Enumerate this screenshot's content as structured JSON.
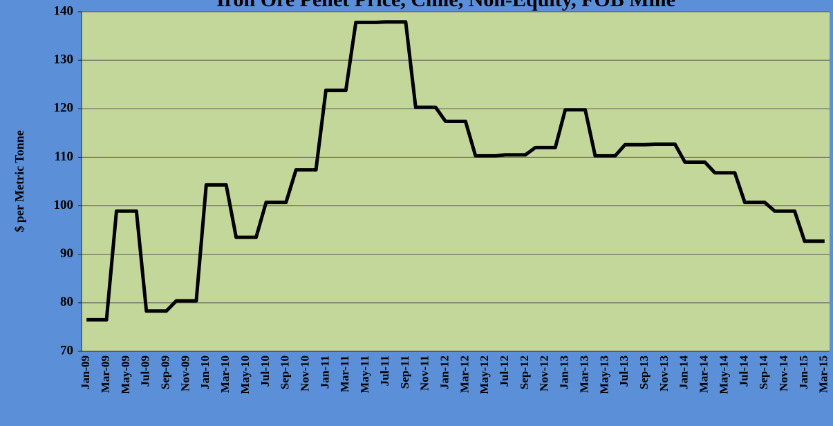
{
  "chart_data": {
    "type": "line",
    "title": "Iron Ore Pellet Price, Chile, Non-Equity, FOB Mine",
    "y_label": "$ per Metric Tonne",
    "categories": [
      "Jan-09",
      null,
      "Mar-09",
      null,
      "May-09",
      null,
      "Jul-09",
      null,
      "Sep-09",
      null,
      "Nov-09",
      null,
      "Jan-10",
      null,
      "Mar-10",
      null,
      "May-10",
      null,
      "Jul-10",
      null,
      "Sep-10",
      null,
      "Nov-10",
      null,
      "Jan-11",
      null,
      "Mar-11",
      null,
      "May-11",
      null,
      "Jul-11",
      null,
      "Sep-11",
      null,
      "Nov-11",
      null,
      "Jan-12",
      null,
      "Mar-12",
      null,
      "May-12",
      null,
      "Jul-12",
      null,
      "Sep-12",
      null,
      "Nov-12",
      null,
      "Jan-13",
      null,
      "Mar-13",
      null,
      "May-13",
      null,
      "Jul-13",
      null,
      "Sep-13",
      null,
      "Nov-13",
      null,
      "Jan-14",
      null,
      "Mar-14",
      null,
      "May-14",
      null,
      "Jul-14",
      null,
      "Sep-14",
      null,
      "Nov-14",
      null,
      "Jan-15",
      null,
      "Mar-15"
    ],
    "values": [
      76.5,
      76.5,
      76.5,
      98.9,
      98.9,
      98.9,
      78.3,
      78.3,
      78.3,
      80.4,
      80.4,
      80.4,
      104.3,
      104.3,
      104.3,
      93.5,
      93.5,
      93.5,
      100.7,
      100.7,
      100.7,
      107.4,
      107.4,
      107.4,
      123.8,
      123.8,
      123.8,
      137.8,
      137.8,
      137.8,
      137.9,
      137.9,
      137.9,
      120.3,
      120.3,
      120.3,
      117.4,
      117.4,
      117.4,
      110.3,
      110.3,
      110.3,
      110.5,
      110.5,
      110.5,
      112.0,
      112.0,
      112.0,
      119.8,
      119.8,
      119.8,
      110.3,
      110.3,
      110.3,
      112.6,
      112.6,
      112.6,
      112.7,
      112.7,
      112.7,
      109.0,
      109.0,
      109.0,
      106.8,
      106.8,
      106.8,
      100.7,
      100.7,
      100.7,
      98.9,
      98.9,
      98.9,
      92.7,
      92.7,
      92.7
    ],
    "color": "#000000",
    "ylim": [
      70,
      140
    ],
    "yticks": [
      70,
      80,
      90,
      100,
      110,
      120,
      130,
      140
    ],
    "grid": true
  }
}
